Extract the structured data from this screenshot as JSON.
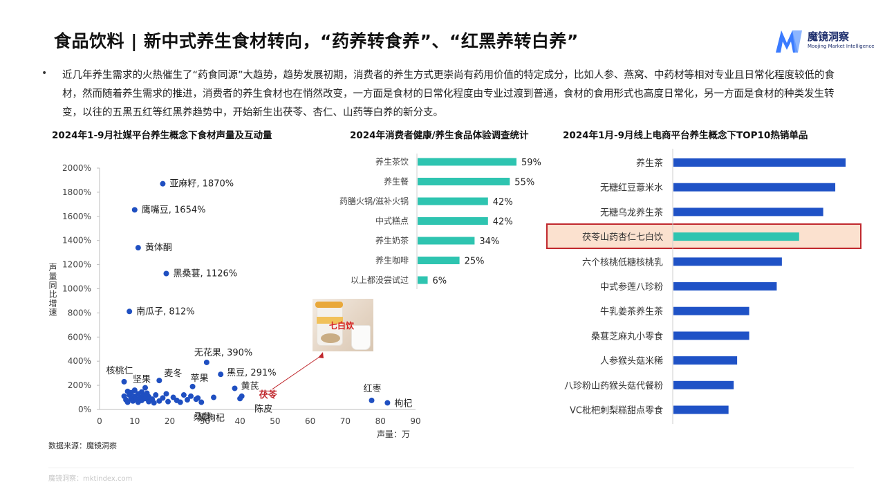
{
  "header": {
    "title": "食品饮料 | 新中式养生食材转向，“药养转食养”、“红黑养转白养”",
    "logo_text": "魔镜洞察",
    "logo_subtext": "Moojing Market Intelligence"
  },
  "intro": {
    "bullet": "•",
    "text": "近几年养生需求的火热催生了“药食同源”大趋势，趋势发展初期，消费者的养生方式更崇尚有药用价值的特定成分，比如人参、燕窝、中药材等相对专业且日常化程度较低的食材，然而随着养生需求的推进，消费者的养生食材也在悄然改变，一方面是食材的日常化程度由专业过渡到普通，食材的食用形式也高度日常化，另一方面是食材的种类发生转变，以往的五黑五红等红黑养趋势中，开始新生出茯苓、杏仁、山药等白养的新分支。"
  },
  "colors": {
    "scatter": "#1f4fc1",
    "teal": "#2ec4b0",
    "blue": "#1f52c6",
    "highlight_border": "#c0282d",
    "highlight_fill": "#fbe1cf",
    "callout_red": "#c0282d"
  },
  "chart_data": [
    {
      "type": "scatter",
      "title": "2024年1-9月社媒平台养生概念下食材声量及互动量",
      "xlabel": "声量：万",
      "ylabel": "声量同比增速",
      "xlim": [
        0,
        90
      ],
      "ylim": [
        0,
        2000
      ],
      "x_ticks": [
        0,
        10,
        20,
        30,
        40,
        50,
        60,
        70,
        80,
        90
      ],
      "y_ticks": [
        "0%",
        "200%",
        "400%",
        "600%",
        "800%",
        "1000%",
        "1200%",
        "1400%",
        "1600%",
        "1800%",
        "2000%"
      ],
      "y_tick_values": [
        0,
        200,
        400,
        600,
        800,
        1000,
        1200,
        1400,
        1600,
        1800,
        2000
      ],
      "labeled_points": [
        {
          "label": "亚麻籽, 1870%",
          "x": 18,
          "y": 1870
        },
        {
          "label": "鹰嘴豆, 1654%",
          "x": 10,
          "y": 1654
        },
        {
          "label": "黄体酮",
          "x": 11,
          "y": 1340
        },
        {
          "label": "黑桑葚, 1126%",
          "x": 19,
          "y": 1126
        },
        {
          "label": "南瓜子, 812%",
          "x": 8.5,
          "y": 812
        },
        {
          "label": "无花果, 390%",
          "x": 30.5,
          "y": 390
        },
        {
          "label": "黑豆, 291%",
          "x": 34.5,
          "y": 291
        },
        {
          "label": "核桃仁",
          "x": 7,
          "y": 230
        },
        {
          "label": "麦冬",
          "x": 17,
          "y": 240
        },
        {
          "label": "坚果",
          "x": 13,
          "y": 180
        },
        {
          "label": "苹果",
          "x": 26.5,
          "y": 190
        },
        {
          "label": "黄芪",
          "x": 38.5,
          "y": 175
        },
        {
          "label": "茯苓",
          "x": 40.5,
          "y": 110
        },
        {
          "label": "陈皮",
          "x": 40,
          "y": 90
        },
        {
          "label": "红枣",
          "x": 77.5,
          "y": 75
        },
        {
          "label": "枸杞",
          "x": 82,
          "y": 55
        },
        {
          "label": "桑葚",
          "x": 27.5,
          "y": 85
        },
        {
          "label": "黑枸杞",
          "x": 32.5,
          "y": 100
        }
      ],
      "cluster_points": [
        {
          "x": 7,
          "y": 110
        },
        {
          "x": 7.5,
          "y": 80
        },
        {
          "x": 8,
          "y": 150
        },
        {
          "x": 8,
          "y": 60
        },
        {
          "x": 8.5,
          "y": 120
        },
        {
          "x": 9,
          "y": 90
        },
        {
          "x": 9,
          "y": 140
        },
        {
          "x": 9.5,
          "y": 70
        },
        {
          "x": 10,
          "y": 110
        },
        {
          "x": 10,
          "y": 160
        },
        {
          "x": 10.5,
          "y": 85
        },
        {
          "x": 11,
          "y": 130
        },
        {
          "x": 11,
          "y": 60
        },
        {
          "x": 11.5,
          "y": 100
        },
        {
          "x": 12,
          "y": 145
        },
        {
          "x": 12,
          "y": 75
        },
        {
          "x": 12.5,
          "y": 115
        },
        {
          "x": 13,
          "y": 90
        },
        {
          "x": 13.5,
          "y": 135
        },
        {
          "x": 14,
          "y": 65
        },
        {
          "x": 14,
          "y": 105
        },
        {
          "x": 15,
          "y": 85
        },
        {
          "x": 16,
          "y": 120
        },
        {
          "x": 17,
          "y": 70
        },
        {
          "x": 18,
          "y": 95
        },
        {
          "x": 19,
          "y": 130
        },
        {
          "x": 19.5,
          "y": 65
        },
        {
          "x": 21,
          "y": 100
        },
        {
          "x": 22,
          "y": 75
        },
        {
          "x": 24,
          "y": 120
        },
        {
          "x": 25,
          "y": 80
        },
        {
          "x": 26,
          "y": 110
        },
        {
          "x": 28,
          "y": 95
        },
        {
          "x": 29,
          "y": 60
        },
        {
          "x": 23,
          "y": 60
        },
        {
          "x": 15.5,
          "y": 55
        }
      ],
      "callout": {
        "text": "七白饮"
      }
    },
    {
      "type": "bar",
      "orientation": "horizontal",
      "title": "2024年消费者健康/养生食品体验调查统计",
      "categories": [
        "养生茶饮",
        "养生餐",
        "药膳火锅/滋补火锅",
        "中式糕点",
        "养生奶茶",
        "养生咖啡",
        "以上都没尝试过"
      ],
      "values": [
        59,
        55,
        42,
        42,
        34,
        25,
        6
      ],
      "value_labels": [
        "59%",
        "55%",
        "42%",
        "42%",
        "34%",
        "25%",
        "6%"
      ]
    },
    {
      "type": "bar",
      "orientation": "horizontal",
      "title": "2024年1月-9月线上电商平台养生概念下TOP10热销单品",
      "categories": [
        "养生茶",
        "无糖红豆薏米水",
        "无糖乌龙养生茶",
        "茯苓山药杏仁七白饮",
        "六个核桃低糖核桃乳",
        "中式参莲八珍粉",
        "牛乳姜茶养生茶",
        "桑葚芝麻丸小零食",
        "人参猴头菇米稀",
        "八珍粉山药猴头菇代餐粉",
        "VC枇杷刺梨糕甜点零食"
      ],
      "values": [
        100,
        94,
        87,
        73,
        63,
        60,
        44,
        44,
        37,
        35,
        32
      ],
      "highlight_index": 3
    }
  ],
  "source": "数据来源：魔镜洞察",
  "footer": "魔镜洞察：mktindex.com"
}
